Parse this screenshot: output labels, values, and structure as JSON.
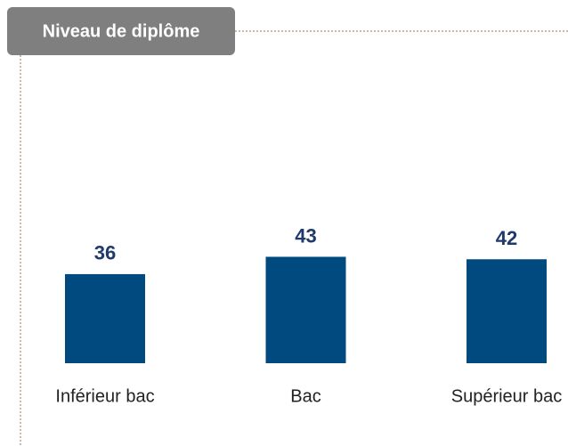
{
  "chart_data": {
    "type": "bar",
    "title": "Niveau de diplôme",
    "categories": [
      "Inférieur bac",
      "Bac",
      "Supérieur bac"
    ],
    "values": [
      36,
      43,
      42
    ],
    "color": "#004a80"
  }
}
